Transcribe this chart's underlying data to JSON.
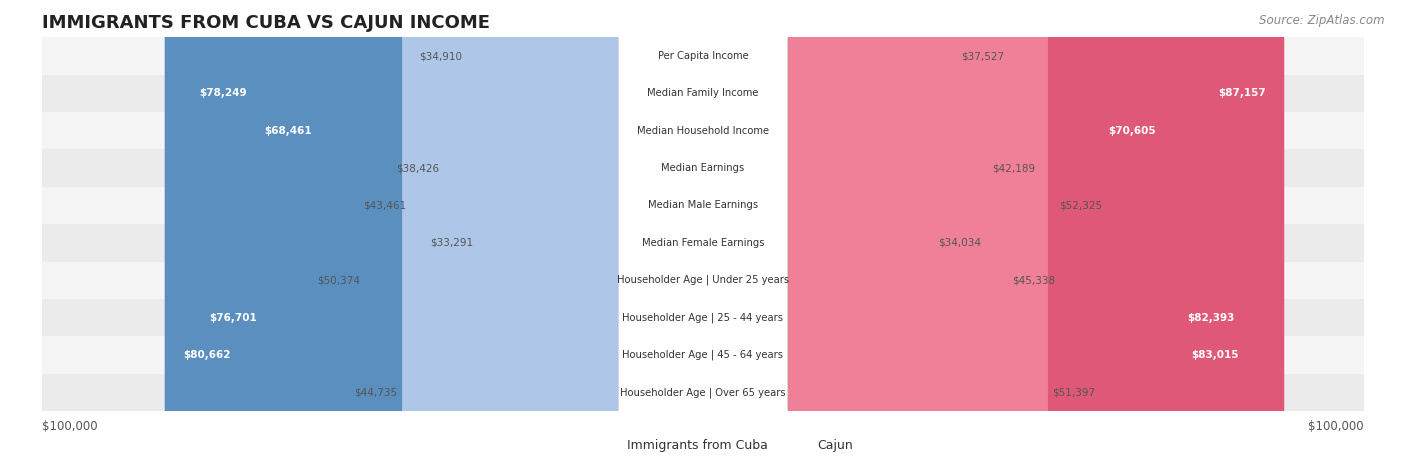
{
  "title": "IMMIGRANTS FROM CUBA VS CAJUN INCOME",
  "source": "Source: ZipAtlas.com",
  "categories": [
    "Per Capita Income",
    "Median Family Income",
    "Median Household Income",
    "Median Earnings",
    "Median Male Earnings",
    "Median Female Earnings",
    "Householder Age | Under 25 years",
    "Householder Age | 25 - 44 years",
    "Householder Age | 45 - 64 years",
    "Householder Age | Over 65 years"
  ],
  "cuba_values": [
    34910,
    78249,
    68461,
    38426,
    43461,
    33291,
    50374,
    76701,
    80662,
    44735
  ],
  "cajun_values": [
    37527,
    87157,
    70605,
    42189,
    52325,
    34034,
    45338,
    82393,
    83015,
    51397
  ],
  "cuba_labels": [
    "$34,910",
    "$78,249",
    "$68,461",
    "$38,426",
    "$43,461",
    "$33,291",
    "$50,374",
    "$76,701",
    "$80,662",
    "$44,735"
  ],
  "cajun_labels": [
    "$37,527",
    "$87,157",
    "$70,605",
    "$42,189",
    "$52,325",
    "$34,034",
    "$45,338",
    "$82,393",
    "$83,015",
    "$51,397"
  ],
  "max_val": 100000,
  "blue_light": "#aec6e8",
  "blue_mid": "#7bafd4",
  "blue_dark": "#5b8fc0",
  "pink_light": "#f7bfcc",
  "pink_mid": "#f08098",
  "pink_dark": "#e05878",
  "row_bg_odd": "#f5f5f5",
  "row_bg_even": "#ebebeb",
  "label_box_color": "#f0f0f0"
}
